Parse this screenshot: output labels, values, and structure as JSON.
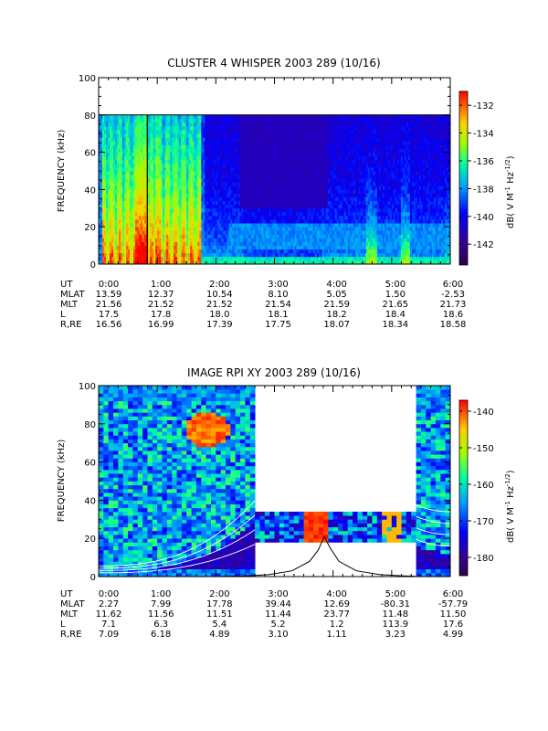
{
  "chart_data": [
    {
      "type": "heatmap",
      "title": "CLUSTER 4 WHISPER 2003 289 (10/16)",
      "ylabel": "FREQUENCY (kHz)",
      "ylim": [
        0,
        100
      ],
      "yticks": [
        "0",
        "20",
        "40",
        "60",
        "80",
        "100"
      ],
      "xticks": [
        "0:00",
        "1:00",
        "2:00",
        "3:00",
        "4:00",
        "5:00",
        "6:00"
      ],
      "data_max_frequency_khz": 80,
      "colorbar": {
        "label_parts": [
          "dB( V M",
          "-1",
          " Hz",
          "-1/2",
          ")"
        ],
        "ticks": [
          "-132",
          "-134",
          "-136",
          "-138",
          "-140",
          "-142"
        ],
        "range": [
          -143.5,
          -131
        ]
      },
      "ephemeris": {
        "labels": [
          "UT",
          "MLAT",
          "MLT",
          "L",
          "R,RE"
        ],
        "rows": [
          [
            "0:00",
            "1:00",
            "2:00",
            "3:00",
            "4:00",
            "5:00",
            "6:00"
          ],
          [
            "13.59",
            "12.37",
            "10.54",
            "8.10",
            "5.05",
            "1.50",
            "-2.53"
          ],
          [
            "21.56",
            "21.52",
            "21.52",
            "21.54",
            "21.59",
            "21.65",
            "21.73"
          ],
          [
            "17.5",
            "17.8",
            "18.0",
            "18.1",
            "18.2",
            "18.4",
            "18.6"
          ],
          [
            "16.56",
            "16.99",
            "17.39",
            "17.75",
            "18.07",
            "18.34",
            "18.58"
          ]
        ]
      },
      "colors": {
        "background_low": "#00008b",
        "background_mid": "#0000ff",
        "intense": "#ff0000"
      }
    },
    {
      "type": "heatmap",
      "title": "IMAGE RPI XY 2003 289 (10/16)",
      "ylabel": "FREQUENCY (kHz)",
      "ylim": [
        0,
        100
      ],
      "yticks": [
        "0",
        "20",
        "40",
        "60",
        "80",
        "100"
      ],
      "xticks": [
        "0:00",
        "1:00",
        "2:00",
        "3:00",
        "4:00",
        "5:00",
        "6:00"
      ],
      "data_gap_hours": [
        2.65,
        5.45
      ],
      "gap_band_khz": [
        17,
        34
      ],
      "colorbar": {
        "label_parts": [
          "dB( V M",
          "-1",
          " Hz",
          "-1/2",
          ")"
        ],
        "ticks": [
          "-140",
          "-150",
          "-160",
          "-170",
          "-180"
        ],
        "range": [
          -185,
          -137
        ]
      },
      "ephemeris": {
        "labels": [
          "UT",
          "MLAT",
          "MLT",
          "L",
          "R,RE"
        ],
        "rows": [
          [
            "0:00",
            "1:00",
            "2:00",
            "3:00",
            "4:00",
            "5:00",
            "6:00"
          ],
          [
            "2.27",
            "7.99",
            "17.78",
            "39.44",
            "12.69",
            "-80.31",
            "-57.79"
          ],
          [
            "11.62",
            "11.56",
            "11.51",
            "11.44",
            "23.77",
            "11.48",
            "11.50"
          ],
          [
            "7.1",
            "6.3",
            "5.4",
            "5.2",
            "1.2",
            "113.9",
            "17.6"
          ],
          [
            "7.09",
            "6.18",
            "4.89",
            "3.10",
            "1.11",
            "3.23",
            "4.99"
          ]
        ]
      },
      "overlay_curve": {
        "description_free": true,
        "x_hours": [
          2.1,
          2.5,
          2.9,
          3.3,
          3.6,
          3.75,
          3.85,
          3.95,
          4.1,
          4.4,
          4.8,
          5.2,
          5.4
        ],
        "y_khz": [
          0.1,
          0.3,
          1,
          3,
          8,
          14,
          21,
          15,
          8,
          3,
          1,
          0.4,
          0.2
        ]
      }
    }
  ]
}
